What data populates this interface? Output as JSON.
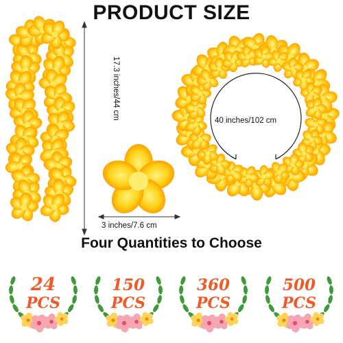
{
  "title": "PRODUCT SIZE",
  "dimensions": {
    "strand_length": "17.3 inches/44 cm",
    "flower_size": "3 inches/7.6 cm",
    "wreath_circumference": "40 inches/102 cm"
  },
  "subtitle": "Four Quantities to Choose",
  "quantities": [
    {
      "number": "24",
      "unit": "PCS"
    },
    {
      "number": "150",
      "unit": "PCS"
    },
    {
      "number": "360",
      "unit": "PCS"
    },
    {
      "number": "500",
      "unit": "PCS"
    }
  ],
  "colors": {
    "petal_light": "#ffe23a",
    "petal_dark": "#ff9a00",
    "petal_edge": "#ff6a00",
    "leaf": "#3f9a3a",
    "qty_text": "#f05a28"
  }
}
